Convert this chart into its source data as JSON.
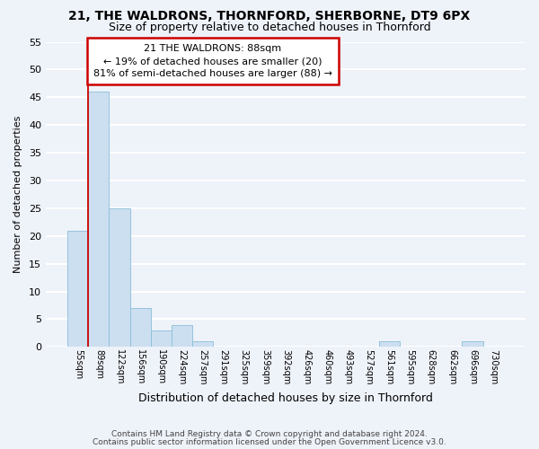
{
  "title1": "21, THE WALDRONS, THORNFORD, SHERBORNE, DT9 6PX",
  "title2": "Size of property relative to detached houses in Thornford",
  "xlabel": "Distribution of detached houses by size in Thornford",
  "ylabel": "Number of detached properties",
  "categories": [
    "55sqm",
    "89sqm",
    "122sqm",
    "156sqm",
    "190sqm",
    "224sqm",
    "257sqm",
    "291sqm",
    "325sqm",
    "359sqm",
    "392sqm",
    "426sqm",
    "460sqm",
    "493sqm",
    "527sqm",
    "561sqm",
    "595sqm",
    "628sqm",
    "662sqm",
    "696sqm",
    "730sqm"
  ],
  "values": [
    21,
    46,
    25,
    7,
    3,
    4,
    1,
    0,
    0,
    0,
    0,
    0,
    0,
    0,
    0,
    1,
    0,
    0,
    0,
    1,
    0
  ],
  "bar_color": "#ccdff0",
  "bar_edge_color": "#8abdd8",
  "annotation_title": "21 THE WALDRONS: 88sqm",
  "annotation_line1": "← 19% of detached houses are smaller (20)",
  "annotation_line2": "81% of semi-detached houses are larger (88) →",
  "footnote1": "Contains HM Land Registry data © Crown copyright and database right 2024.",
  "footnote2": "Contains public sector information licensed under the Open Government Licence v3.0.",
  "ylim": [
    0,
    55
  ],
  "yticks": [
    0,
    5,
    10,
    15,
    20,
    25,
    30,
    35,
    40,
    45,
    50,
    55
  ],
  "background_color": "#eef2f9",
  "grid_color": "#ffffff",
  "vline_color": "#cc0000",
  "ann_box_color": "#cc0000",
  "title1_fontsize": 10,
  "title2_fontsize": 9
}
